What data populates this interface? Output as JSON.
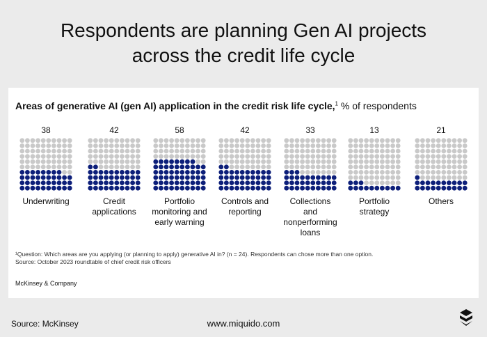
{
  "headline": {
    "line1": "Respondents are planning Gen AI projects",
    "line2": "across the credit life cycle"
  },
  "chart_title": {
    "bold": "Areas of generative AI (gen AI) application in the credit risk life cycle,",
    "sup": "1",
    "rest": " % of respondents"
  },
  "chart_data": {
    "type": "waffle",
    "categories": [
      "Underwriting",
      "Credit applications",
      "Portfolio monitoring and early warning",
      "Controls and reporting",
      "Collections and nonperforming loans",
      "Portfolio strategy",
      "Others"
    ],
    "labels": [
      "Underwriting",
      "Credit\napplications",
      "Portfolio\nmonitoring and\nearly warning",
      "Controls and\nreporting",
      "Collections and\nnonperforming\nloans",
      "Portfolio\nstrategy",
      "Others"
    ],
    "values": [
      38,
      42,
      58,
      42,
      33,
      13,
      21
    ],
    "unit": "% of respondents",
    "colors": {
      "filled": "#0d1f7a",
      "empty": "#c9c9c9"
    }
  },
  "footnote": {
    "line1": "¹Question: Which areas are you applying (or planning to apply) generative AI in?  (n = 24). Respondents can chose more than one option.",
    "line2": " Source: October 2023 roundtable of chief credit risk officers"
  },
  "brand": "McKinsey & Company",
  "footer": {
    "source": "Source: McKinsey",
    "site": "www.miquido.com"
  },
  "logo_icon": "miquido-logo-icon"
}
